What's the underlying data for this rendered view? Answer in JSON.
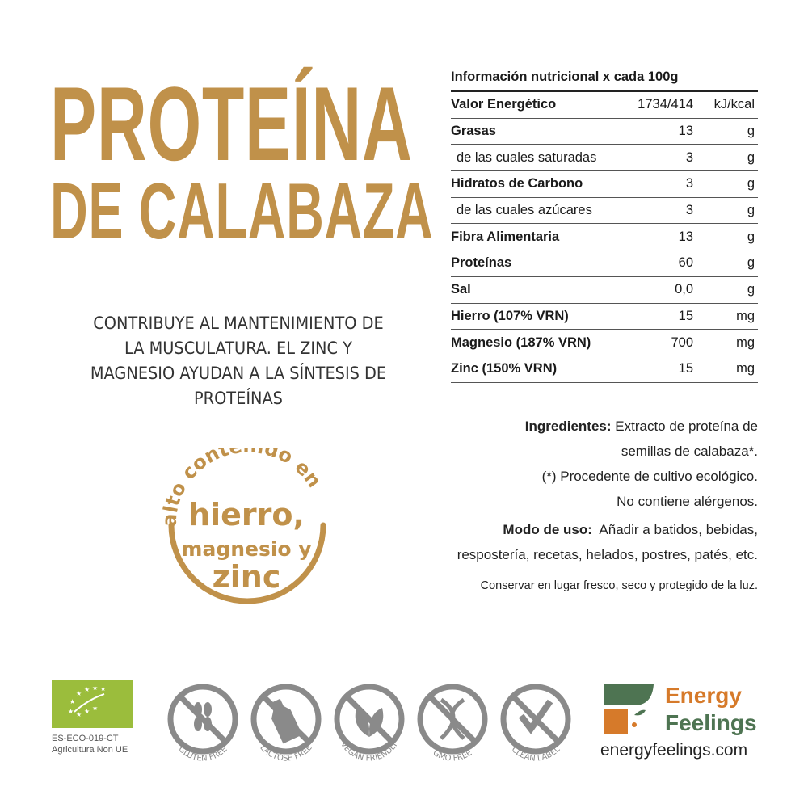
{
  "title": {
    "line1": "PROTEÍNA",
    "line2": "DE CALABAZA"
  },
  "claim": "CONTRIBUYE AL MANTENIMIENTO DE LA MUSCULATURA. EL ZINC Y MAGNESIO AYUDAN A LA SÍNTESIS DE PROTEÍNAS",
  "badge": {
    "arc": "alto contenido en",
    "line1": "hierro,",
    "line2": "magnesio y",
    "line3": "zinc"
  },
  "nutrition": {
    "header": "Información nutricional x cada 100g",
    "rows": [
      {
        "name": "Valor Energético",
        "value": "1734/414",
        "unit": "kJ/kcal"
      },
      {
        "name": "Grasas",
        "value": "13",
        "unit": "g"
      },
      {
        "name": "de las cuales saturadas",
        "value": "3",
        "unit": "g"
      },
      {
        "name": "Hidratos de Carbono",
        "value": "3",
        "unit": "g"
      },
      {
        "name": "de las cuales azúcares",
        "value": "3",
        "unit": "g"
      },
      {
        "name": "Fibra Alimentaria",
        "value": "13",
        "unit": "g"
      },
      {
        "name": "Proteínas",
        "value": "60",
        "unit": "g"
      },
      {
        "name": "Sal",
        "value": "0,0",
        "unit": "g"
      },
      {
        "name": "Hierro (107% VRN)",
        "value": "15",
        "unit": "mg"
      },
      {
        "name": "Magnesio (187% VRN)",
        "value": "700",
        "unit": "mg"
      },
      {
        "name": "Zinc (150% VRN)",
        "value": "15",
        "unit": "mg"
      }
    ]
  },
  "ingredients": {
    "label": "Ingredientes:",
    "text1": "Extracto de proteína de",
    "text2": "semillas de calabaza*.",
    "note1": "(*) Procedente de cultivo ecológico.",
    "note2": "No contiene alérgenos."
  },
  "usage": {
    "label": "Modo de uso:",
    "text1": "Añadir a batidos, bebidas,",
    "text2": "respostería, recetas, helados, postres, patés, etc."
  },
  "storage": "Conservar en lugar fresco, seco y protegido de la luz.",
  "eu": {
    "code": "ES-ECO-019-CT",
    "origin": "Agricultura Non UE"
  },
  "icons": [
    {
      "label": "GLUTEN FREE",
      "icon": "wheat-icon"
    },
    {
      "label": "LACTOSE FREE",
      "icon": "milk-bottle-icon"
    },
    {
      "label": "VEGAN FRIENDLY",
      "icon": "leaf-icon"
    },
    {
      "label": "GMO FREE",
      "icon": "dna-icon"
    },
    {
      "label": "CLEAN LABEL",
      "icon": "check-leaf-icon"
    }
  ],
  "brand": {
    "line1": "Energy",
    "line2": "Feelings",
    "url": "energyfeelings.com"
  },
  "colors": {
    "gold": "#c0914a",
    "grey": "#8a8a8a",
    "orange": "#d67a2a",
    "green": "#4e7452",
    "eu_green": "#9bbd3c"
  }
}
